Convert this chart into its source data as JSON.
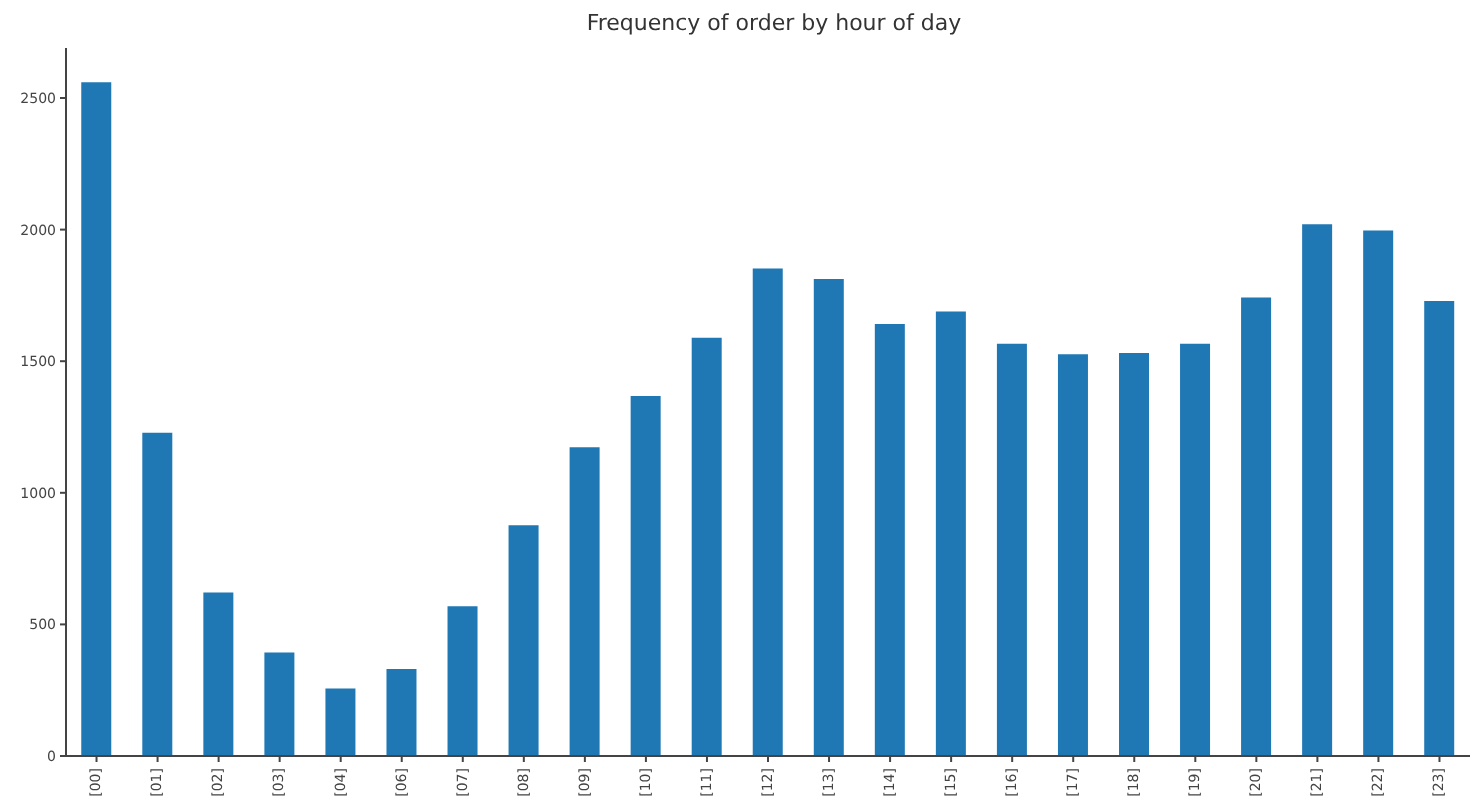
{
  "chart_data": {
    "type": "bar",
    "title": "Frequency of order by hour of day",
    "categories": [
      "[00]",
      "[01]",
      "[02]",
      "[03]",
      "[04]",
      "[06]",
      "[07]",
      "[08]",
      "[09]",
      "[10]",
      "[11]",
      "[12]",
      "[13]",
      "[14]",
      "[15]",
      "[16]",
      "[17]",
      "[18]",
      "[19]",
      "[20]",
      "[21]",
      "[22]",
      "[23]"
    ],
    "values": [
      2560,
      1228,
      621,
      393,
      256,
      331,
      569,
      877,
      1173,
      1368,
      1589,
      1852,
      1812,
      1641,
      1689,
      1566,
      1526,
      1531,
      1566,
      1742,
      2020,
      1997,
      1729
    ],
    "color": "#1f77b4",
    "ylim": [
      0,
      2690
    ],
    "yticks": [
      0,
      500,
      1000,
      1500,
      2000,
      2500
    ]
  }
}
